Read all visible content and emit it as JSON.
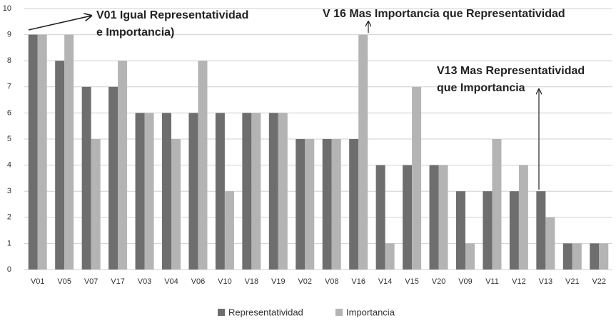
{
  "chart_data": {
    "type": "bar",
    "categories": [
      "V01",
      "V05",
      "V07",
      "V17",
      "V03",
      "V04",
      "V06",
      "V10",
      "V18",
      "V19",
      "V02",
      "V08",
      "V16",
      "V14",
      "V15",
      "V20",
      "V09",
      "V11",
      "V12",
      "V13",
      "V21",
      "V22"
    ],
    "series": [
      {
        "name": "Representatividad",
        "color": "#6e6e6e",
        "values": [
          9,
          8,
          7,
          7,
          6,
          6,
          6,
          6,
          6,
          6,
          5,
          5,
          5,
          4,
          4,
          4,
          3,
          3,
          3,
          3,
          1,
          1
        ]
      },
      {
        "name": "Importancia",
        "color": "#b4b4b4",
        "values": [
          9,
          9,
          5,
          8,
          6,
          5,
          8,
          3,
          6,
          6,
          5,
          5,
          9,
          1,
          7,
          4,
          1,
          5,
          4,
          2,
          1,
          1
        ]
      }
    ],
    "ylim": [
      0,
      10
    ],
    "yticks": [
      0,
      1,
      2,
      3,
      4,
      5,
      6,
      7,
      8,
      9,
      10
    ],
    "grid": true,
    "annotations": [
      {
        "lines": [
          "V01 Igual Representatividad",
          "e Importancia)"
        ]
      },
      {
        "lines": [
          "V 16 Mas Importancia que Representatividad"
        ]
      },
      {
        "lines": [
          "V13 Mas Representatividad",
          "que Importancia"
        ]
      }
    ]
  }
}
